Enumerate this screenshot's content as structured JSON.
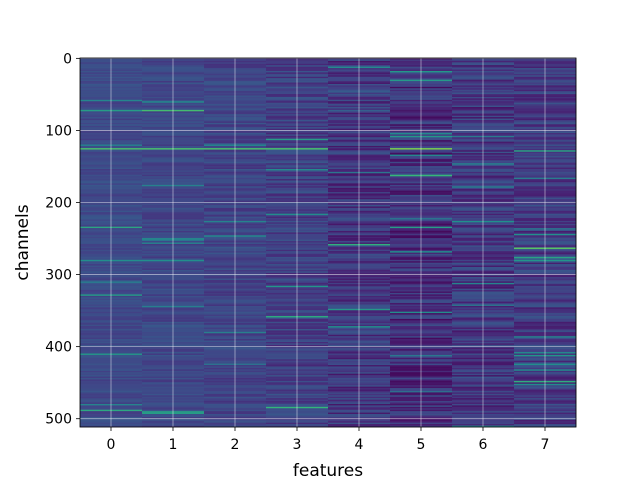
{
  "chart_data": {
    "type": "heatmap",
    "xlabel": "features",
    "ylabel": "channels",
    "x_ticks": [
      0,
      1,
      2,
      3,
      4,
      5,
      6,
      7
    ],
    "y_ticks": [
      0,
      100,
      200,
      300,
      400,
      500
    ],
    "xlim": [
      -0.5,
      7.5
    ],
    "ylim": [
      511.5,
      -0.5
    ],
    "num_rows": 512,
    "num_cols": 8,
    "grid": true,
    "colormap": "viridis",
    "background_color": "#3b528b",
    "highlighted_rows": [
      {
        "row": 125,
        "cols": [
          0,
          1,
          2,
          3
        ],
        "level": 0.78
      },
      {
        "row": 125,
        "cols": [
          4
        ],
        "level": 0.12
      },
      {
        "row": 125,
        "cols": [
          5
        ],
        "level": 0.85
      },
      {
        "row": 263,
        "cols": [
          7
        ],
        "level": 0.8
      },
      {
        "row": 280,
        "cols": [
          0,
          1
        ],
        "level": 0.62
      },
      {
        "row": 162,
        "cols": [
          5
        ],
        "level": 0.75
      },
      {
        "row": 448,
        "cols": [
          7
        ],
        "level": 0.72
      }
    ]
  }
}
